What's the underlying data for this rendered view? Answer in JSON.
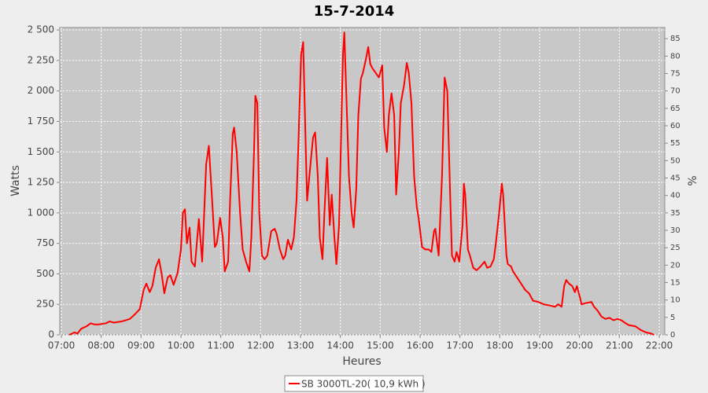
{
  "chart_data": {
    "type": "line",
    "title": "15-7-2014",
    "x_label": "Heures",
    "y_label": "Watts",
    "y2_label": "%",
    "xlim": [
      "07:00",
      "22:00"
    ],
    "xticks": [
      "07:00",
      "08:00",
      "09:00",
      "10:00",
      "11:00",
      "12:00",
      "13:00",
      "14:00",
      "15:00",
      "16:00",
      "17:00",
      "18:00",
      "19:00",
      "20:00",
      "21:00",
      "22:00"
    ],
    "ylim": [
      0,
      2520
    ],
    "yticks": [
      0,
      250,
      500,
      750,
      {
        "value": 1000,
        "label": "1 000"
      },
      {
        "value": 1250,
        "label": "1 250"
      },
      {
        "value": 1500,
        "label": "1 500"
      },
      {
        "value": 1750,
        "label": "1 750"
      },
      {
        "value": 2000,
        "label": "2 000"
      },
      {
        "value": 2250,
        "label": "2 250"
      },
      {
        "value": 2500,
        "label": "2 500"
      }
    ],
    "y2lim": [
      0,
      88.2
    ],
    "y2ticks": [
      0,
      5,
      10,
      15,
      20,
      25,
      30,
      35,
      40,
      45,
      50,
      55,
      60,
      65,
      70,
      75,
      80,
      85
    ],
    "grid": true,
    "legend": "bottom",
    "x": [
      "07:12",
      "07:20",
      "07:24",
      "07:30",
      "07:38",
      "07:44",
      "07:50",
      "07:56",
      "08:07",
      "08:13",
      "08:19",
      "08:31",
      "08:43",
      "08:51",
      "08:58",
      "09:04",
      "09:08",
      "09:13",
      "09:17",
      "09:22",
      "09:27",
      "09:31",
      "09:35",
      "09:40",
      "09:44",
      "09:49",
      "09:55",
      "10:00",
      "10:03",
      "10:06",
      "10:09",
      "10:13",
      "10:16",
      "10:21",
      "10:27",
      "10:32",
      "10:38",
      "10:42",
      "10:47",
      "10:51",
      "10:54",
      "10:59",
      "11:03",
      "11:06",
      "11:11",
      "11:14",
      "11:18",
      "11:20",
      "11:24",
      "11:29",
      "11:33",
      "11:38",
      "11:43",
      "11:46",
      "11:50",
      "11:52",
      "11:55",
      "11:58",
      "12:02",
      "12:06",
      "12:10",
      "12:16",
      "12:21",
      "12:24",
      "12:29",
      "12:34",
      "12:37",
      "12:41",
      "12:46",
      "12:50",
      "12:54",
      "12:57",
      "13:01",
      "13:04",
      "13:08",
      "13:10",
      "13:15",
      "13:19",
      "13:22",
      "13:26",
      "13:29",
      "13:33",
      "13:36",
      "13:40",
      "13:44",
      "13:47",
      "13:51",
      "13:54",
      "13:58",
      "14:01",
      "14:04",
      "14:06",
      "14:10",
      "14:13",
      "14:17",
      "14:20",
      "14:24",
      "14:27",
      "14:31",
      "14:34",
      "14:38",
      "14:42",
      "14:45",
      "14:49",
      "14:53",
      "14:58",
      "15:03",
      "15:06",
      "15:10",
      "15:13",
      "15:17",
      "15:21",
      "15:24",
      "15:28",
      "15:31",
      "15:36",
      "15:40",
      "15:43",
      "15:47",
      "15:51",
      "15:55",
      "15:58",
      "16:03",
      "16:08",
      "16:13",
      "16:17",
      "16:21",
      "16:23",
      "16:28",
      "16:33",
      "16:37",
      "16:41",
      "16:45",
      "16:48",
      "16:52",
      "16:55",
      "16:59",
      "17:04",
      "17:06",
      "17:08",
      "17:12",
      "17:15",
      "17:20",
      "17:25",
      "17:31",
      "17:37",
      "17:41",
      "17:46",
      "17:51",
      "17:54",
      "17:59",
      "18:03",
      "18:05",
      "18:10",
      "18:12",
      "18:17",
      "18:20",
      "18:26",
      "18:32",
      "18:38",
      "18:44",
      "18:50",
      "18:58",
      "19:06",
      "19:16",
      "19:23",
      "19:28",
      "19:33",
      "19:37",
      "19:40",
      "19:44",
      "19:49",
      "19:53",
      "19:56",
      "20:01",
      "20:03",
      "20:09",
      "20:18",
      "20:22",
      "20:27",
      "20:33",
      "20:39",
      "20:45",
      "20:51",
      "20:57",
      "21:03",
      "21:08",
      "21:14",
      "21:24",
      "21:32",
      "21:40",
      "21:48",
      "21:52"
    ],
    "series": [
      {
        "name": "SB 3000TL-20( 10,9 kWh )",
        "color": "#ff0000",
        "values": [
          0,
          20,
          10,
          50,
          70,
          95,
          85,
          85,
          95,
          110,
          100,
          110,
          130,
          170,
          210,
          370,
          420,
          350,
          400,
          550,
          620,
          500,
          340,
          470,
          490,
          410,
          510,
          700,
          1000,
          1030,
          750,
          880,
          600,
          560,
          950,
          600,
          1400,
          1550,
          1100,
          720,
          750,
          960,
          800,
          520,
          600,
          1100,
          1650,
          1700,
          1500,
          1000,
          700,
          600,
          520,
          800,
          1500,
          1960,
          1900,
          1000,
          650,
          620,
          650,
          850,
          870,
          830,
          700,
          620,
          650,
          780,
          700,
          800,
          1100,
          1600,
          2300,
          2400,
          1500,
          1100,
          1400,
          1620,
          1660,
          1300,
          800,
          620,
          1000,
          1450,
          900,
          1150,
          800,
          580,
          900,
          1600,
          2300,
          2480,
          1800,
          1300,
          1000,
          880,
          1200,
          1800,
          2100,
          2150,
          2250,
          2360,
          2220,
          2180,
          2150,
          2110,
          2210,
          1700,
          1500,
          1800,
          1980,
          1800,
          1150,
          1500,
          1900,
          2050,
          2230,
          2150,
          1900,
          1300,
          1050,
          950,
          720,
          700,
          700,
          680,
          850,
          870,
          650,
          1300,
          2110,
          2000,
          1200,
          650,
          600,
          680,
          600,
          900,
          1240,
          1150,
          700,
          650,
          550,
          530,
          560,
          600,
          550,
          560,
          620,
          750,
          1000,
          1240,
          1150,
          650,
          580,
          560,
          520,
          470,
          420,
          370,
          340,
          280,
          270,
          250,
          240,
          230,
          250,
          230,
          400,
          450,
          420,
          400,
          350,
          400,
          300,
          250,
          260,
          270,
          230,
          200,
          150,
          130,
          140,
          120,
          130,
          120,
          100,
          80,
          70,
          40,
          20,
          10,
          0
        ]
      }
    ]
  }
}
